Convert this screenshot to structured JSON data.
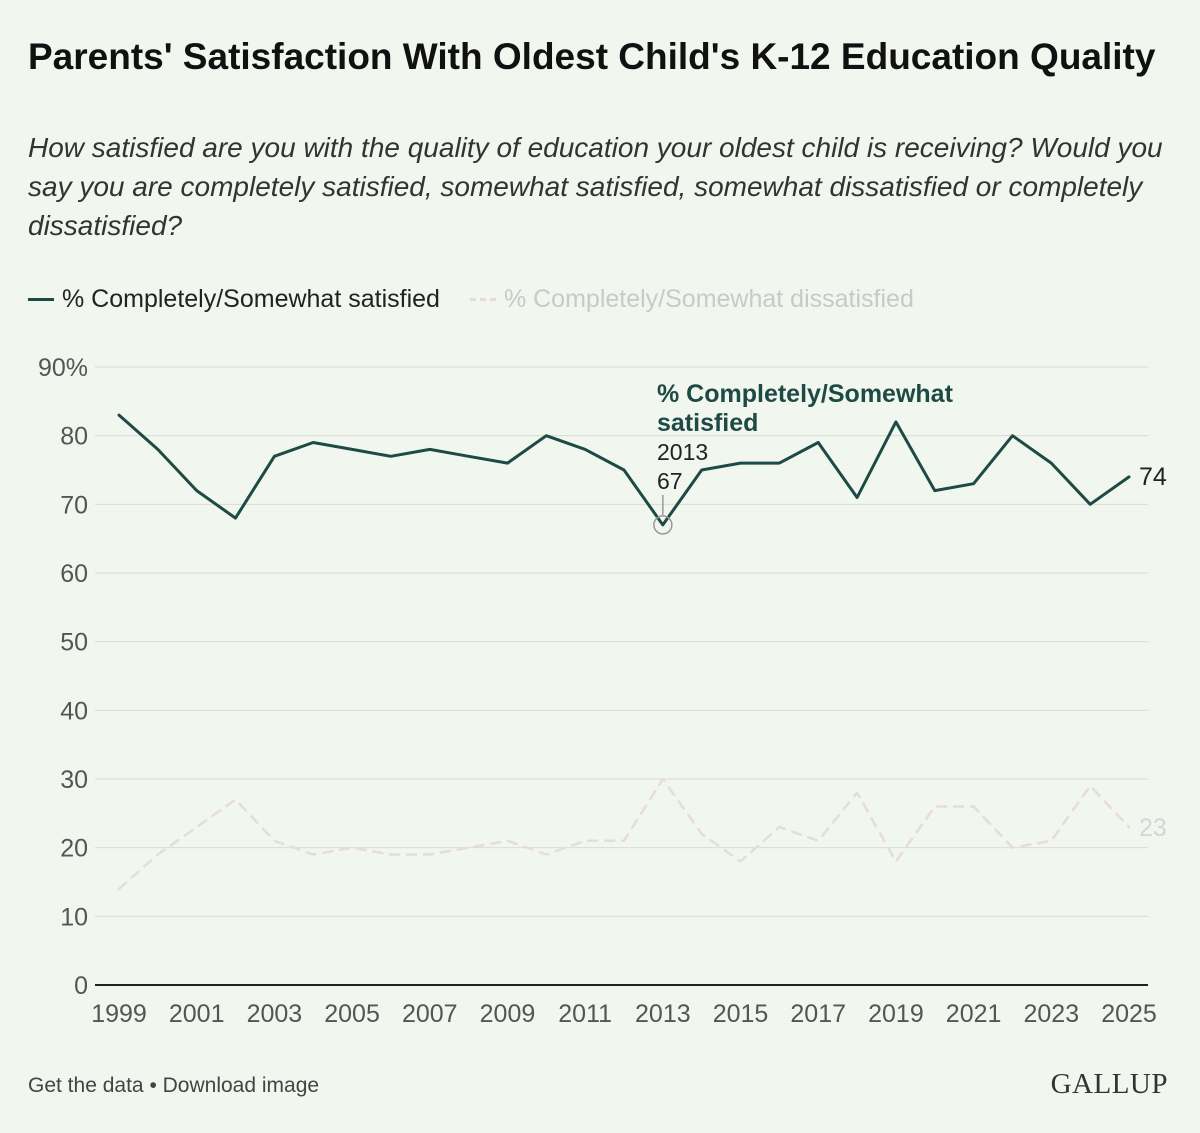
{
  "header": {
    "title": "Parents' Satisfaction With Oldest Child's K-12 Education Quality",
    "subtitle": "How satisfied are you with the quality of education your oldest child is receiving? Would you say you are completely satisfied, somewhat satisfied, somewhat dissatisfied or completely dissatisfied?"
  },
  "legend": {
    "satisfied": "% Completely/Somewhat satisfied",
    "dissatisfied": "% Completely/Somewhat dissatisfied"
  },
  "chart_data": {
    "type": "line",
    "title": "Parents' Satisfaction With Oldest Child's K-12 Education Quality",
    "x": [
      1999,
      2000,
      2001,
      2002,
      2003,
      2004,
      2005,
      2006,
      2007,
      2008,
      2009,
      2010,
      2011,
      2012,
      2013,
      2014,
      2015,
      2016,
      2017,
      2018,
      2019,
      2020,
      2021,
      2022,
      2023,
      2024,
      2025
    ],
    "x_tick_labels": [
      "1999",
      "2001",
      "2003",
      "2005",
      "2007",
      "2009",
      "2011",
      "2013",
      "2015",
      "2017",
      "2019",
      "2021",
      "2023",
      "2025"
    ],
    "y_tick_labels": [
      "90%",
      "80",
      "70",
      "60",
      "50",
      "40",
      "30",
      "20",
      "10",
      "0"
    ],
    "y_ticks": [
      90,
      80,
      70,
      60,
      50,
      40,
      30,
      20,
      10,
      0
    ],
    "ylim": [
      0,
      90
    ],
    "grid": true,
    "series": [
      {
        "name": "% Completely/Somewhat satisfied",
        "color": "#1e4a46",
        "style": "solid",
        "values": [
          83,
          78,
          72,
          68,
          77,
          79,
          78,
          77,
          78,
          77,
          76,
          80,
          78,
          75,
          67,
          75,
          76,
          76,
          79,
          71,
          82,
          72,
          73,
          80,
          76,
          70,
          74
        ]
      },
      {
        "name": "% Completely/Somewhat dissatisfied",
        "color": "#e8ddd0",
        "style": "dashed",
        "values": [
          14,
          19,
          23,
          27,
          21,
          19,
          20,
          19,
          19,
          20,
          21,
          19,
          21,
          21,
          30,
          22,
          18,
          23,
          21,
          28,
          18,
          26,
          26,
          20,
          21,
          29,
          23
        ]
      }
    ],
    "end_labels": {
      "satisfied": "74",
      "dissatisfied": "23"
    },
    "annotation": {
      "series_label": "% Completely/Somewhat satisfied",
      "year": "2013",
      "value": "67",
      "x": 2013,
      "y": 67
    }
  },
  "footer": {
    "get_data": "Get the data",
    "separator": "•",
    "download": "Download image"
  },
  "logo": "GALLUP"
}
